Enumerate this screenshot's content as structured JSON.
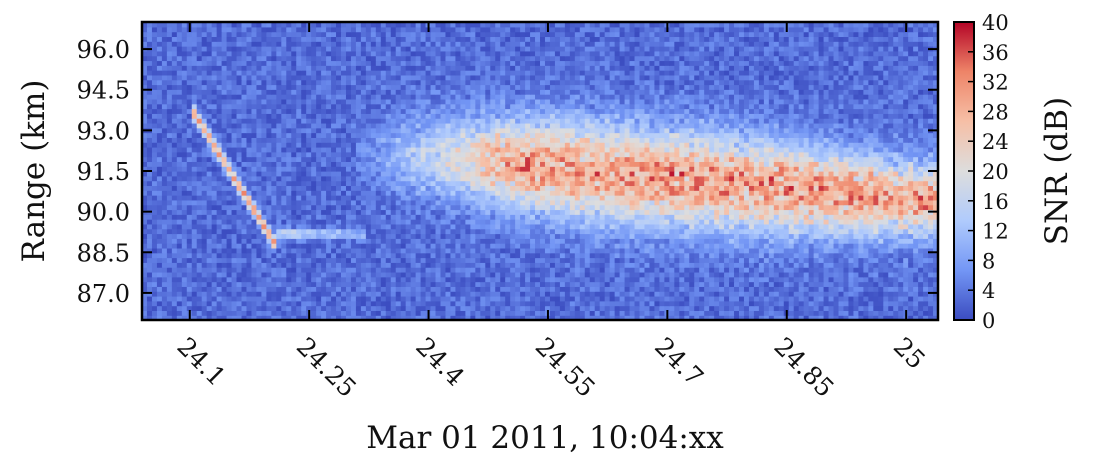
{
  "chart_data": {
    "type": "heatmap",
    "title": "",
    "xlabel": "Mar 01 2011, 10:04:xx",
    "ylabel": "Range (km)",
    "colorbar_label": "SNR (dB)",
    "xlim": [
      24.04,
      25.04
    ],
    "ylim": [
      86.0,
      97.0
    ],
    "clim": [
      0,
      40
    ],
    "x_ticks": [
      "24.1",
      "24.25",
      "24.4",
      "24.55",
      "24.7",
      "24.85",
      "25"
    ],
    "y_ticks": [
      "87.0",
      "88.5",
      "90.0",
      "91.5",
      "93.0",
      "94.5",
      "96.0"
    ],
    "colorbar_ticks": [
      "0",
      "4",
      "8",
      "12",
      "16",
      "20",
      "24",
      "28",
      "32",
      "36",
      "40"
    ],
    "colormap": "coolwarm",
    "colormap_colors": [
      "#3b4cc0",
      "#7396f5",
      "#b0cbfc",
      "#dddddd",
      "#f6bfa6",
      "#ee8468",
      "#b40426"
    ],
    "grid": false,
    "features": {
      "background_snr": 3,
      "diagonal_streak": {
        "start": [
          24.1,
          93.9
        ],
        "end": [
          24.21,
          88.7
        ],
        "snr": 28
      },
      "horizontal_tail": {
        "x_range": [
          24.21,
          24.32
        ],
        "range_km": 89.2,
        "snr": 15
      },
      "main_echo": {
        "x_range": [
          24.3,
          25.04
        ],
        "center_range_start": 92.3,
        "center_range_end": 90.4,
        "peak_snr": 32
      }
    }
  }
}
